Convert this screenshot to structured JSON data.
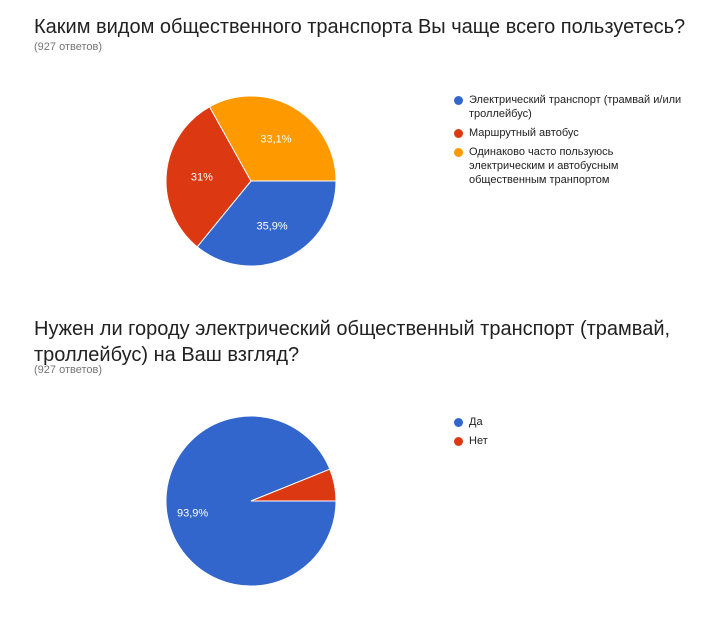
{
  "chart_data": [
    {
      "type": "pie",
      "title": "Каким видом общественного транспорта Вы чаще всего пользуетесь?",
      "subtitle": "(927 ответов)",
      "legend_position": "right",
      "slices": [
        {
          "label": "Электрический транспорт (трамвай и/или троллейбус)",
          "value": 35.9,
          "display": "35,9%",
          "color": "#3366cc"
        },
        {
          "label": "Маршрутный автобус",
          "value": 31.0,
          "display": "31%",
          "color": "#dc3912"
        },
        {
          "label": "Одинаково часто пользуюсь электрическим и автобусным общественным транпортом",
          "value": 33.1,
          "display": "33,1%",
          "color": "#ff9900"
        }
      ]
    },
    {
      "type": "pie",
      "title": "Нужен ли городу электрический общественный транспорт (трамвай, троллейбус) на Ваш взгляд?",
      "subtitle": "(927 ответов)",
      "legend_position": "right",
      "slices": [
        {
          "label": "Да",
          "value": 93.9,
          "display": "93,9%",
          "color": "#3366cc"
        },
        {
          "label": "Нет",
          "value": 6.1,
          "display": "",
          "color": "#dc3912"
        }
      ]
    }
  ]
}
